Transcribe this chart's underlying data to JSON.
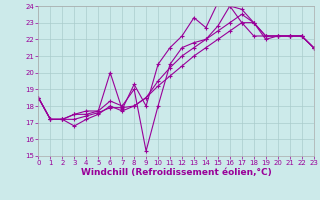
{
  "xlabel": "Windchill (Refroidissement éolien,°C)",
  "xlim": [
    0,
    23
  ],
  "ylim": [
    15,
    24
  ],
  "xticks": [
    0,
    1,
    2,
    3,
    4,
    5,
    6,
    7,
    8,
    9,
    10,
    11,
    12,
    13,
    14,
    15,
    16,
    17,
    18,
    19,
    20,
    21,
    22,
    23
  ],
  "yticks": [
    15,
    16,
    17,
    18,
    19,
    20,
    21,
    22,
    23,
    24
  ],
  "line_color": "#990099",
  "bg_color": "#cceaea",
  "grid_color": "#aacccc",
  "lines_y": [
    [
      18.5,
      17.2,
      17.2,
      17.5,
      17.5,
      17.7,
      20.0,
      17.8,
      19.3,
      18.0,
      20.5,
      21.5,
      22.2,
      23.3,
      22.7,
      24.2,
      24.0,
      23.8,
      23.0,
      22.2,
      22.2,
      22.2,
      22.2,
      21.5
    ],
    [
      18.5,
      17.2,
      17.2,
      17.5,
      17.7,
      17.7,
      18.3,
      18.0,
      19.0,
      15.3,
      18.0,
      20.5,
      21.5,
      21.8,
      22.0,
      22.8,
      24.0,
      23.0,
      22.2,
      22.2,
      22.2,
      22.2,
      22.2,
      21.5
    ],
    [
      18.5,
      17.2,
      17.2,
      16.8,
      17.2,
      17.5,
      18.0,
      17.7,
      18.0,
      18.5,
      19.5,
      20.3,
      21.0,
      21.5,
      22.0,
      22.5,
      23.0,
      23.5,
      23.0,
      22.0,
      22.2,
      22.2,
      22.2,
      21.5
    ],
    [
      18.5,
      17.2,
      17.2,
      17.2,
      17.4,
      17.6,
      17.9,
      17.9,
      18.0,
      18.5,
      19.2,
      19.8,
      20.4,
      21.0,
      21.5,
      22.0,
      22.5,
      23.0,
      23.0,
      22.2,
      22.2,
      22.2,
      22.2,
      21.5
    ]
  ],
  "marker": "+",
  "marker_size": 3,
  "linewidth": 0.8,
  "tick_fontsize": 5,
  "xlabel_fontsize": 6.5
}
